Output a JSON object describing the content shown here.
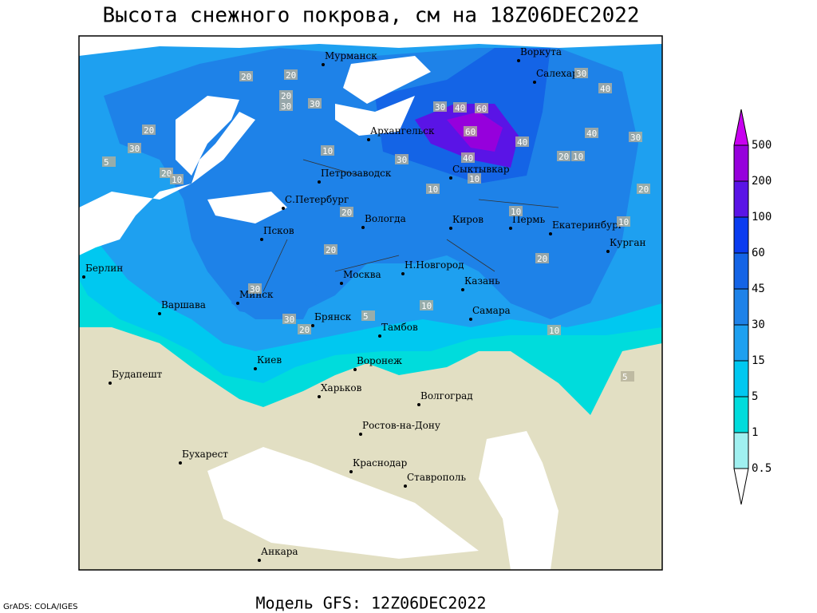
{
  "title": "Высота снежного покрова, см на 18Z06DEC2022",
  "subtitle": "Модель GFS: 12Z06DEC2022",
  "credit": "GrADS: COLA/IGES",
  "legend": {
    "levels": [
      0.5,
      1,
      5,
      15,
      30,
      45,
      60,
      100,
      200,
      500
    ],
    "colors": [
      "#ffffff",
      "#a0f0f0",
      "#00dcdc",
      "#00c8f0",
      "#1ea0f0",
      "#1e82e8",
      "#1464e6",
      "#0a3cf0",
      "#5a14e6",
      "#9600dc",
      "#c800f0"
    ]
  },
  "cities": [
    "Мурманск",
    "Воркута",
    "Салехард",
    "Архангельск",
    "Сыктывкар",
    "Петрозаводск",
    "С.Петербург",
    "Вологда",
    "Киров",
    "Пермь",
    "Екатеринбург",
    "Курган",
    "Псков",
    "Н.Новгород",
    "Казань",
    "Москва",
    "Берлин",
    "Варшава",
    "Минск",
    "Брянск",
    "Тамбов",
    "Самара",
    "Киев",
    "Воронеж",
    "Будапешт",
    "Харьков",
    "Волгоград",
    "Бухарест",
    "Ростов-на-Дону",
    "Краснодар",
    "Ставрополь",
    "Анкара"
  ],
  "contour_labels": [
    20,
    20,
    30,
    20,
    30,
    30,
    20,
    5,
    20,
    10,
    10,
    30,
    40,
    60,
    60,
    40,
    40,
    30,
    40,
    40,
    30,
    30,
    20,
    10,
    10,
    10,
    20,
    10,
    20,
    30,
    30,
    20,
    5,
    10,
    10,
    20,
    20,
    10,
    5
  ]
}
